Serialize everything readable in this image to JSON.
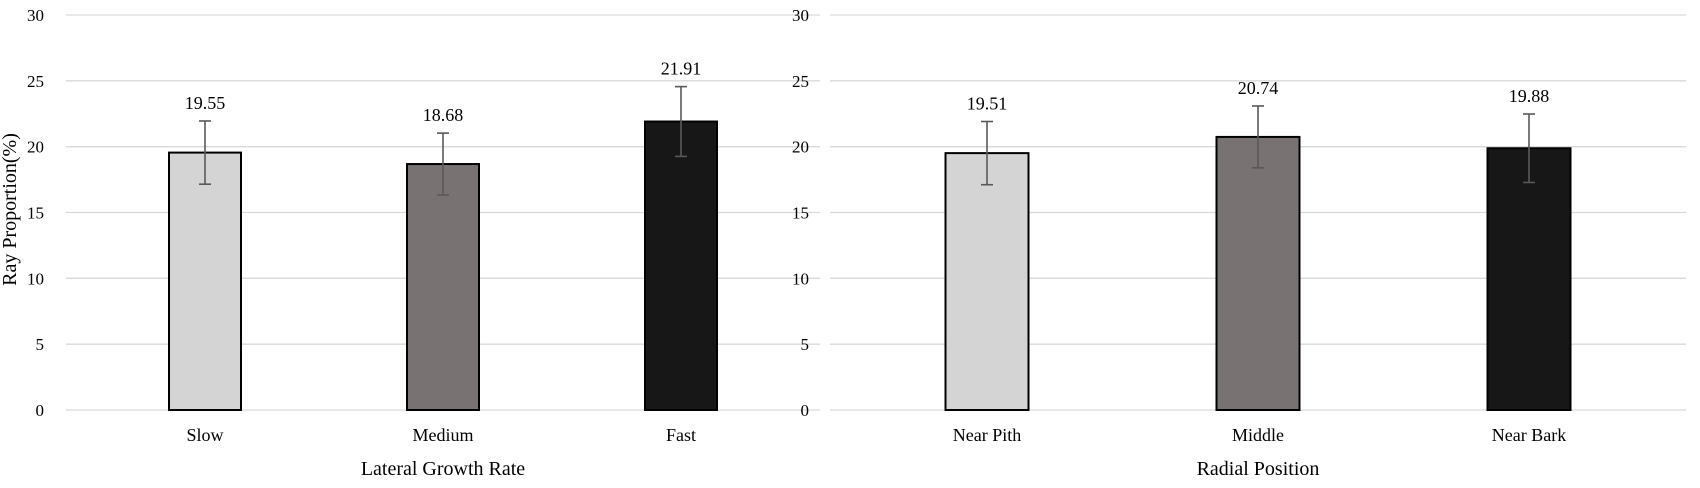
{
  "chart_data": [
    {
      "type": "bar",
      "categories": [
        "Slow",
        "Medium",
        "Fast"
      ],
      "values": [
        19.55,
        18.68,
        21.91
      ],
      "error": [
        2.4,
        2.35,
        2.65
      ],
      "data_labels": [
        "19.55",
        "18.68",
        "21.91"
      ],
      "colors": [
        "#d4d4d4",
        "#787272",
        "#171717"
      ],
      "title": "",
      "xlabel": "Lateral Growth Rate",
      "ylabel": "Ray Proportion(%)",
      "ylim": [
        0,
        30
      ],
      "yticks": [
        "0",
        "5",
        "10",
        "15",
        "20",
        "25",
        "30"
      ],
      "grid": true
    },
    {
      "type": "bar",
      "categories": [
        "Near Pith",
        "Middle",
        "Near Bark"
      ],
      "values": [
        19.51,
        20.74,
        19.88
      ],
      "error": [
        2.4,
        2.35,
        2.6
      ],
      "data_labels": [
        "19.51",
        "20.74",
        "19.88"
      ],
      "colors": [
        "#d4d4d4",
        "#787272",
        "#171717"
      ],
      "title": "",
      "xlabel": "Radial Position",
      "ylabel": "",
      "ylim": [
        0,
        30
      ],
      "yticks": [
        "0",
        "5",
        "10",
        "15",
        "20",
        "25",
        "30"
      ],
      "grid": true
    }
  ]
}
